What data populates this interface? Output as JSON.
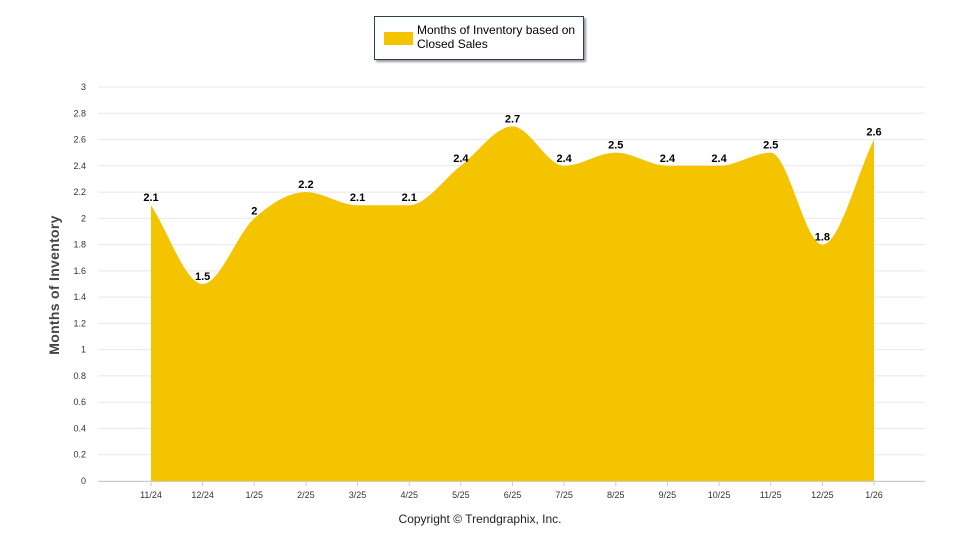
{
  "legend": {
    "label": "Months of Inventory based on Closed Sales"
  },
  "footer": {
    "copyright": "Copyright © Trendgraphix, Inc."
  },
  "colors": {
    "fill": "#F5C400",
    "grid": "#e8e8e8",
    "axis": "#cccccc"
  },
  "chart_data": {
    "type": "area",
    "ylabel": "Months of Inventory",
    "xlabel": "",
    "ylim": [
      0,
      3
    ],
    "yticks": [
      0,
      0.2,
      0.4,
      0.6,
      0.8,
      1,
      1.2,
      1.4,
      1.6,
      1.8,
      2,
      2.2,
      2.4,
      2.6,
      2.8,
      3
    ],
    "grid": true,
    "legend_position": "top-center",
    "categories": [
      "11/24",
      "12/24",
      "1/25",
      "2/25",
      "3/25",
      "4/25",
      "5/25",
      "6/25",
      "7/25",
      "8/25",
      "9/25",
      "10/25",
      "11/25",
      "12/25",
      "1/26"
    ],
    "series": [
      {
        "name": "Months of Inventory based on Closed Sales",
        "values": [
          2.1,
          1.5,
          2,
          2.2,
          2.1,
          2.1,
          2.4,
          2.7,
          2.4,
          2.5,
          2.4,
          2.4,
          2.5,
          1.8,
          2.6
        ],
        "data_labels": [
          "2.1",
          "1.5",
          "2",
          "2.2",
          "2.1",
          "2.1",
          "2.4",
          "2.7",
          "2.4",
          "2.5",
          "2.4",
          "2.4",
          "2.5",
          "1.8",
          "2.6"
        ]
      }
    ]
  }
}
